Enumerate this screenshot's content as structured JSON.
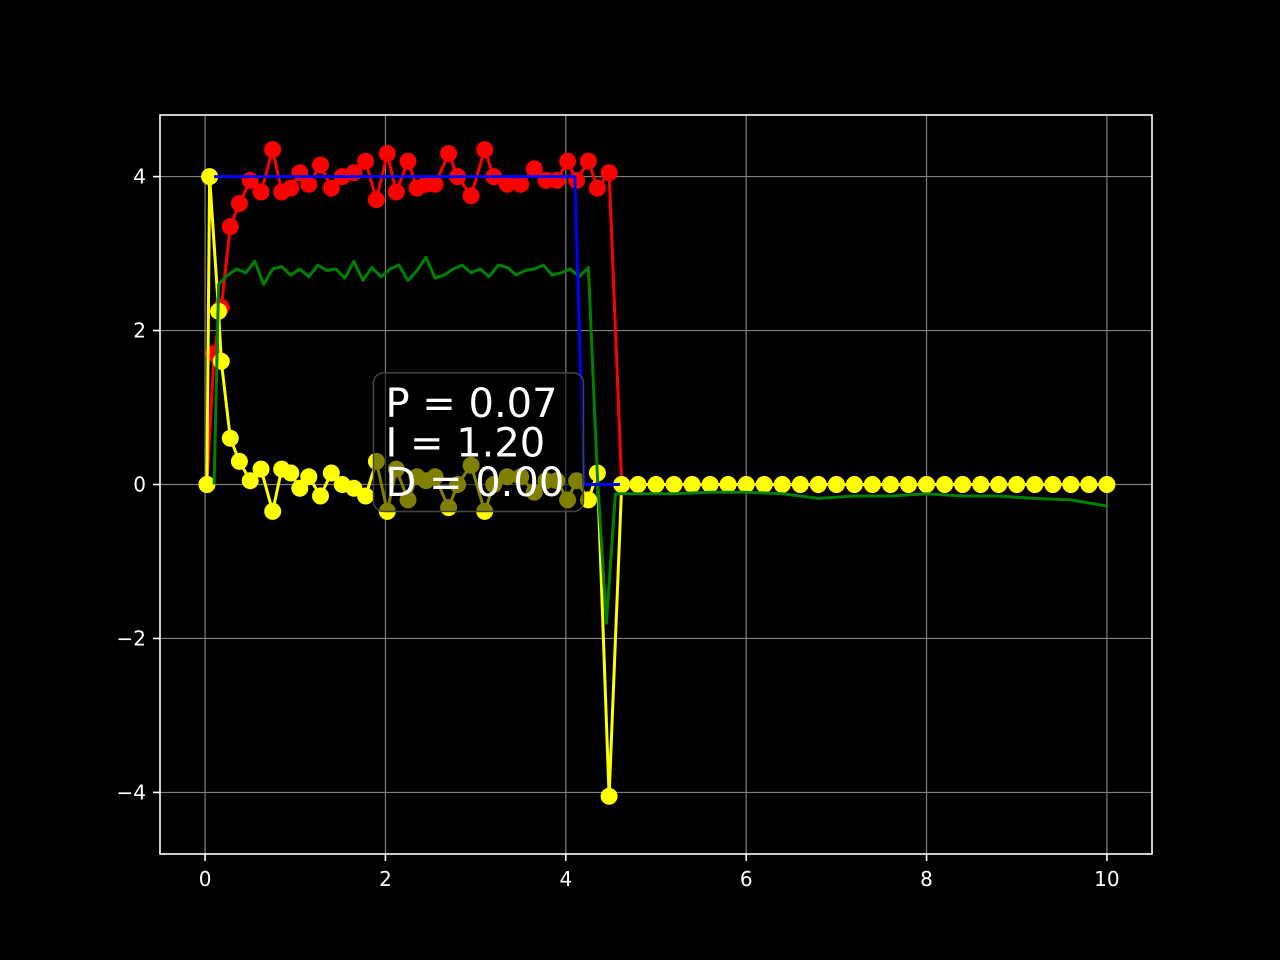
{
  "chart_data": {
    "type": "line",
    "title": "",
    "xlabel": "",
    "ylabel": "",
    "xlim": [
      -0.5,
      10.5
    ],
    "ylim": [
      -4.8,
      4.8
    ],
    "x_ticks": [
      0,
      2,
      4,
      6,
      8,
      10
    ],
    "y_ticks": [
      -4,
      -2,
      0,
      2,
      4
    ],
    "x_tick_labels": [
      "0",
      "2",
      "4",
      "6",
      "8",
      "10"
    ],
    "y_tick_labels": [
      "−4",
      "−2",
      "0",
      "2",
      "4"
    ],
    "grid": true,
    "background": "#000000",
    "axes_color": "#ffffff",
    "grid_color": "#808080",
    "annotation": {
      "lines": [
        "P = 0.07",
        "I = 1.20",
        "D = 0.00"
      ],
      "x": 2.0,
      "y_top": 1.45,
      "y_bottom": -0.35
    },
    "series": [
      {
        "color": "#0000ff",
        "marker": false,
        "points": [
          [
            0.1,
            4.0
          ],
          [
            4.1,
            4.0
          ],
          [
            4.2,
            0.0
          ],
          [
            4.6,
            0.0
          ]
        ]
      },
      {
        "color": "#008000",
        "marker": false,
        "points": [
          [
            0.1,
            0.0
          ],
          [
            0.15,
            2.6
          ],
          [
            0.25,
            2.72
          ],
          [
            0.35,
            2.8
          ],
          [
            0.45,
            2.75
          ],
          [
            0.55,
            2.9
          ],
          [
            0.65,
            2.6
          ],
          [
            0.75,
            2.8
          ],
          [
            0.85,
            2.83
          ],
          [
            0.95,
            2.72
          ],
          [
            1.05,
            2.8
          ],
          [
            1.15,
            2.7
          ],
          [
            1.25,
            2.85
          ],
          [
            1.35,
            2.78
          ],
          [
            1.45,
            2.8
          ],
          [
            1.55,
            2.68
          ],
          [
            1.65,
            2.9
          ],
          [
            1.75,
            2.65
          ],
          [
            1.85,
            2.82
          ],
          [
            1.95,
            2.7
          ],
          [
            2.05,
            2.8
          ],
          [
            2.15,
            2.85
          ],
          [
            2.25,
            2.65
          ],
          [
            2.35,
            2.78
          ],
          [
            2.45,
            2.95
          ],
          [
            2.55,
            2.68
          ],
          [
            2.65,
            2.72
          ],
          [
            2.75,
            2.8
          ],
          [
            2.85,
            2.85
          ],
          [
            2.95,
            2.75
          ],
          [
            3.05,
            2.8
          ],
          [
            3.15,
            2.7
          ],
          [
            3.25,
            2.85
          ],
          [
            3.35,
            2.82
          ],
          [
            3.45,
            2.72
          ],
          [
            3.55,
            2.78
          ],
          [
            3.65,
            2.8
          ],
          [
            3.75,
            2.85
          ],
          [
            3.85,
            2.72
          ],
          [
            3.95,
            2.75
          ],
          [
            4.05,
            2.8
          ],
          [
            4.15,
            2.7
          ],
          [
            4.25,
            2.82
          ],
          [
            4.35,
            0.1
          ],
          [
            4.45,
            -1.8
          ],
          [
            4.55,
            -0.12
          ],
          [
            4.8,
            -0.12
          ],
          [
            5.2,
            -0.12
          ],
          [
            5.6,
            -0.1
          ],
          [
            6.0,
            -0.1
          ],
          [
            6.4,
            -0.12
          ],
          [
            6.8,
            -0.18
          ],
          [
            7.2,
            -0.15
          ],
          [
            7.6,
            -0.15
          ],
          [
            8.0,
            -0.12
          ],
          [
            8.4,
            -0.15
          ],
          [
            8.8,
            -0.15
          ],
          [
            9.2,
            -0.18
          ],
          [
            9.6,
            -0.2
          ],
          [
            10.0,
            -0.28
          ]
        ]
      },
      {
        "color": "#ff0000",
        "marker": true,
        "points": [
          [
            0.02,
            0.0
          ],
          [
            0.1,
            1.7
          ],
          [
            0.18,
            2.3
          ],
          [
            0.28,
            3.35
          ],
          [
            0.38,
            3.65
          ],
          [
            0.5,
            3.95
          ],
          [
            0.62,
            3.8
          ],
          [
            0.75,
            4.35
          ],
          [
            0.85,
            3.8
          ],
          [
            0.95,
            3.85
          ],
          [
            1.05,
            4.05
          ],
          [
            1.15,
            3.9
          ],
          [
            1.28,
            4.15
          ],
          [
            1.4,
            3.85
          ],
          [
            1.52,
            4.0
          ],
          [
            1.65,
            4.05
          ],
          [
            1.78,
            4.2
          ],
          [
            1.9,
            3.7
          ],
          [
            2.02,
            4.3
          ],
          [
            2.12,
            3.8
          ],
          [
            2.25,
            4.2
          ],
          [
            2.35,
            3.85
          ],
          [
            2.45,
            3.9
          ],
          [
            2.55,
            3.9
          ],
          [
            2.7,
            4.3
          ],
          [
            2.8,
            4.0
          ],
          [
            2.95,
            3.75
          ],
          [
            3.1,
            4.35
          ],
          [
            3.2,
            4.0
          ],
          [
            3.35,
            3.9
          ],
          [
            3.5,
            3.9
          ],
          [
            3.65,
            4.1
          ],
          [
            3.78,
            3.95
          ],
          [
            3.9,
            3.95
          ],
          [
            4.02,
            4.2
          ],
          [
            4.12,
            3.95
          ],
          [
            4.25,
            4.2
          ],
          [
            4.35,
            3.85
          ],
          [
            4.48,
            4.05
          ],
          [
            4.62,
            0.0
          ],
          [
            4.8,
            0.0
          ],
          [
            5.0,
            0.0
          ],
          [
            5.2,
            0.0
          ],
          [
            5.4,
            0.0
          ],
          [
            5.6,
            0.0
          ],
          [
            5.8,
            0.0
          ],
          [
            6.0,
            0.0
          ],
          [
            6.2,
            0.0
          ],
          [
            6.4,
            0.0
          ],
          [
            6.6,
            0.0
          ],
          [
            6.8,
            0.0
          ],
          [
            7.0,
            0.0
          ],
          [
            7.2,
            0.0
          ],
          [
            7.4,
            0.0
          ],
          [
            7.6,
            0.0
          ],
          [
            7.8,
            0.0
          ],
          [
            8.0,
            0.0
          ],
          [
            8.2,
            0.0
          ],
          [
            8.4,
            0.0
          ],
          [
            8.6,
            0.0
          ],
          [
            8.8,
            0.0
          ],
          [
            9.0,
            0.0
          ],
          [
            9.2,
            0.0
          ],
          [
            9.4,
            0.0
          ],
          [
            9.6,
            0.0
          ],
          [
            9.8,
            0.0
          ],
          [
            10.0,
            0.0
          ]
        ]
      },
      {
        "color": "#ffff00",
        "marker": true,
        "points": [
          [
            0.02,
            0.0
          ],
          [
            0.05,
            4.0
          ],
          [
            0.15,
            2.25
          ],
          [
            0.18,
            1.6
          ],
          [
            0.28,
            0.6
          ],
          [
            0.38,
            0.3
          ],
          [
            0.5,
            0.05
          ],
          [
            0.62,
            0.2
          ],
          [
            0.75,
            -0.35
          ],
          [
            0.85,
            0.2
          ],
          [
            0.95,
            0.15
          ],
          [
            1.05,
            -0.05
          ],
          [
            1.15,
            0.1
          ],
          [
            1.28,
            -0.15
          ],
          [
            1.4,
            0.15
          ],
          [
            1.52,
            0.0
          ],
          [
            1.65,
            -0.05
          ],
          [
            1.78,
            -0.15
          ],
          [
            1.9,
            0.3
          ],
          [
            2.02,
            -0.35
          ],
          [
            2.12,
            0.2
          ],
          [
            2.25,
            -0.2
          ],
          [
            2.35,
            0.1
          ],
          [
            2.45,
            0.05
          ],
          [
            2.55,
            0.1
          ],
          [
            2.7,
            -0.3
          ],
          [
            2.8,
            0.0
          ],
          [
            2.95,
            0.25
          ],
          [
            3.1,
            -0.35
          ],
          [
            3.2,
            0.0
          ],
          [
            3.35,
            0.1
          ],
          [
            3.5,
            0.1
          ],
          [
            3.65,
            -0.1
          ],
          [
            3.78,
            0.05
          ],
          [
            3.9,
            0.05
          ],
          [
            4.02,
            -0.2
          ],
          [
            4.12,
            0.05
          ],
          [
            4.25,
            -0.2
          ],
          [
            4.35,
            0.15
          ],
          [
            4.48,
            -4.05
          ],
          [
            4.62,
            0.0
          ],
          [
            4.8,
            0.0
          ],
          [
            5.0,
            0.0
          ],
          [
            5.2,
            0.0
          ],
          [
            5.4,
            0.0
          ],
          [
            5.6,
            0.0
          ],
          [
            5.8,
            0.0
          ],
          [
            6.0,
            0.0
          ],
          [
            6.2,
            0.0
          ],
          [
            6.4,
            0.0
          ],
          [
            6.6,
            0.0
          ],
          [
            6.8,
            0.0
          ],
          [
            7.0,
            0.0
          ],
          [
            7.2,
            0.0
          ],
          [
            7.4,
            0.0
          ],
          [
            7.6,
            0.0
          ],
          [
            7.8,
            0.0
          ],
          [
            8.0,
            0.0
          ],
          [
            8.2,
            0.0
          ],
          [
            8.4,
            0.0
          ],
          [
            8.6,
            0.0
          ],
          [
            8.8,
            0.0
          ],
          [
            9.0,
            0.0
          ],
          [
            9.2,
            0.0
          ],
          [
            9.4,
            0.0
          ],
          [
            9.6,
            0.0
          ],
          [
            9.8,
            0.0
          ],
          [
            10.0,
            0.0
          ]
        ]
      }
    ]
  }
}
